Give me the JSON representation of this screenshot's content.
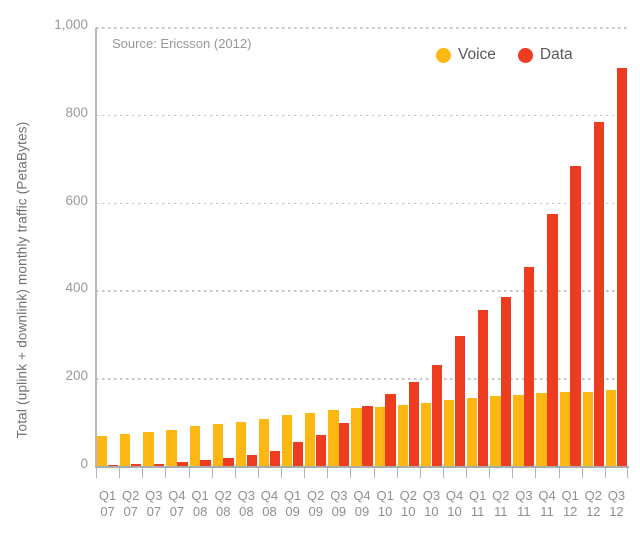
{
  "chart_data": {
    "type": "bar",
    "source_note": "Source: Ericsson (2012)",
    "ylabel": "Total (uplink + downlink) monthly traffic (PetaBytes)",
    "xlabel": "",
    "ylim": [
      0,
      1000
    ],
    "yticks": [
      0,
      200,
      400,
      600,
      800,
      1000
    ],
    "ytick_labels": [
      "0",
      "200",
      "400",
      "600",
      "800",
      "1,000"
    ],
    "grid": "horizontal-dotted",
    "legend_position": "top-right",
    "categories": [
      [
        "Q1",
        "07"
      ],
      [
        "Q2",
        "07"
      ],
      [
        "Q3",
        "07"
      ],
      [
        "Q4",
        "07"
      ],
      [
        "Q1",
        "08"
      ],
      [
        "Q2",
        "08"
      ],
      [
        "Q3",
        "08"
      ],
      [
        "Q4",
        "08"
      ],
      [
        "Q1",
        "09"
      ],
      [
        "Q2",
        "09"
      ],
      [
        "Q3",
        "09"
      ],
      [
        "Q4",
        "09"
      ],
      [
        "Q1",
        "10"
      ],
      [
        "Q2",
        "10"
      ],
      [
        "Q3",
        "10"
      ],
      [
        "Q4",
        "10"
      ],
      [
        "Q1",
        "11"
      ],
      [
        "Q2",
        "11"
      ],
      [
        "Q3",
        "11"
      ],
      [
        "Q4",
        "11"
      ],
      [
        "Q1",
        "12"
      ],
      [
        "Q2",
        "12"
      ],
      [
        "Q3",
        "12"
      ]
    ],
    "series": [
      {
        "name": "Voice",
        "color": "#fdb713",
        "values": [
          70,
          75,
          79,
          84,
          93,
          98,
          103,
          109,
          119,
          124,
          129,
          134,
          137,
          141,
          146,
          152,
          158,
          161,
          164,
          168,
          170,
          172,
          175
        ]
      },
      {
        "name": "Data",
        "color": "#ee3c20",
        "values": [
          4,
          6,
          8,
          11,
          15,
          20,
          28,
          36,
          57,
          74,
          101,
          139,
          167,
          193,
          232,
          298,
          357,
          388,
          455,
          576,
          685,
          786,
          910
        ]
      }
    ]
  },
  "colors": {
    "voice": "#fdb713",
    "data": "#ee3c20",
    "gridline": "#c6c7c9",
    "axis": "#a9abad",
    "tick_label": "#97999b",
    "category_label": "#8d8f91",
    "legend_label": "#58595b",
    "source_note": "#95979a",
    "axis_title": "#6e7073",
    "background": "#ffffff"
  }
}
